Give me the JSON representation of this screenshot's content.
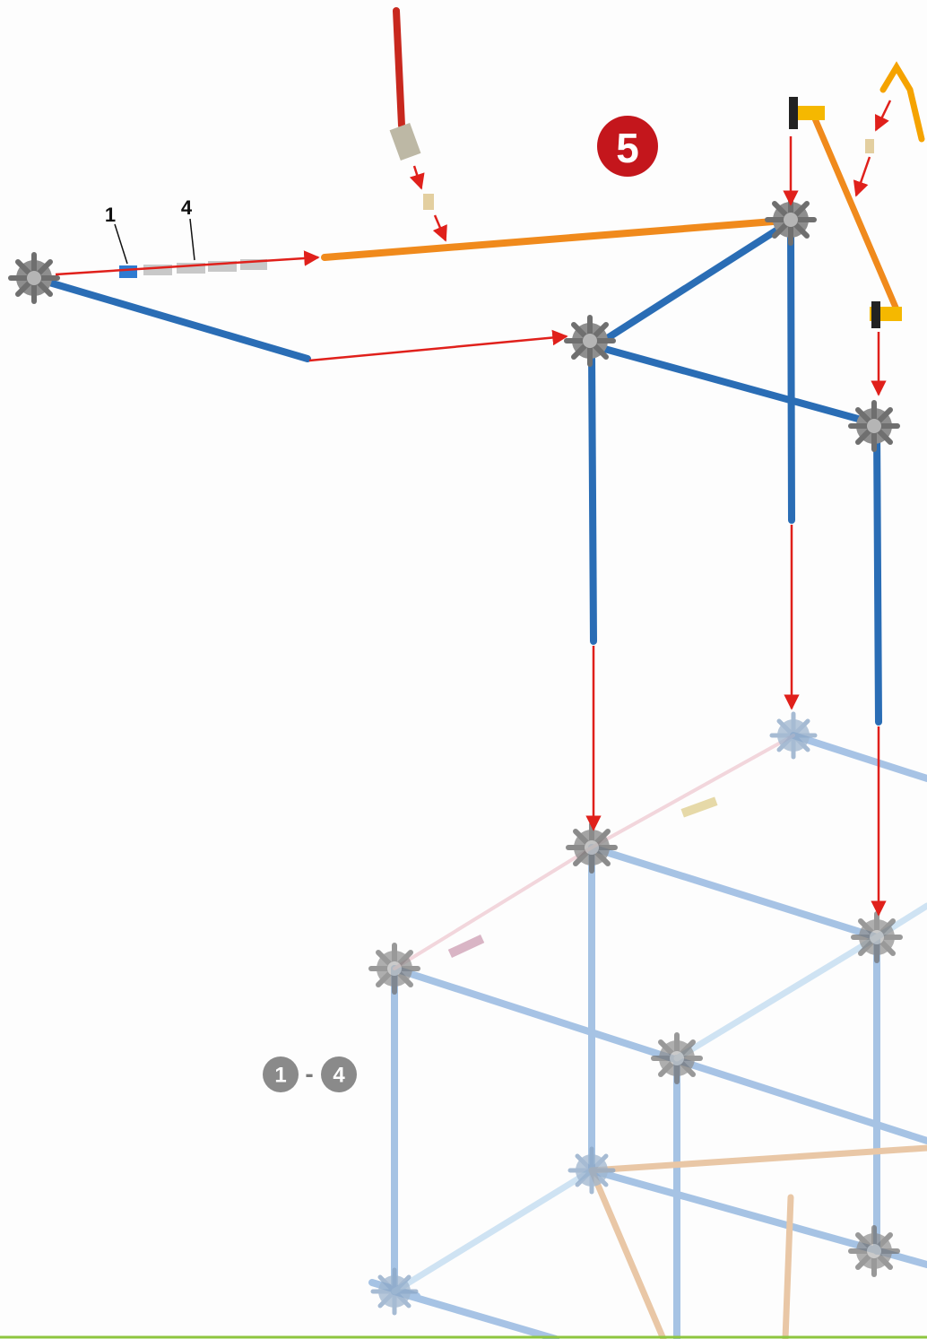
{
  "step": {
    "number": "5"
  },
  "callouts": [
    "1",
    "4"
  ],
  "previous_steps": {
    "from": "1",
    "separator": "-",
    "to": "4"
  }
}
